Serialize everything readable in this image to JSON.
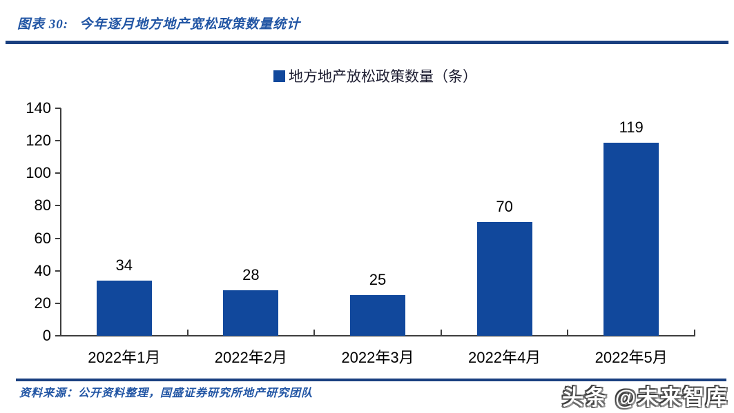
{
  "header": {
    "figure_label": "图表 30:",
    "title": "今年逐月地方地产宽松政策数量统计"
  },
  "legend": {
    "label": "地方地产放松政策数量（条）"
  },
  "chart_data": {
    "type": "bar",
    "title": "今年逐月地方地产宽松政策数量统计",
    "categories": [
      "2022年1月",
      "2022年2月",
      "2022年3月",
      "2022年4月",
      "2022年5月"
    ],
    "series": [
      {
        "name": "地方地产放松政策数量（条）",
        "values": [
          34,
          28,
          25,
          70,
          119
        ]
      }
    ],
    "ylim": [
      0,
      140
    ],
    "yticks": [
      0,
      20,
      40,
      60,
      80,
      100,
      120,
      140
    ],
    "xlabel": "",
    "ylabel": "",
    "grid": false,
    "legend_position": "top",
    "value_labels": true,
    "bar_color": "#11489c"
  },
  "footer": {
    "source": "资料来源：公开资料整理，国盛证券研究所地产研究团队",
    "watermark": "头条 @未来智库"
  },
  "colors": {
    "bar": "#11489c",
    "rule": "#1a4080",
    "title_text": "#2155a4",
    "legend_text": "#1c1c30",
    "axis": "#3d3d3d",
    "label_text": "#000000"
  }
}
